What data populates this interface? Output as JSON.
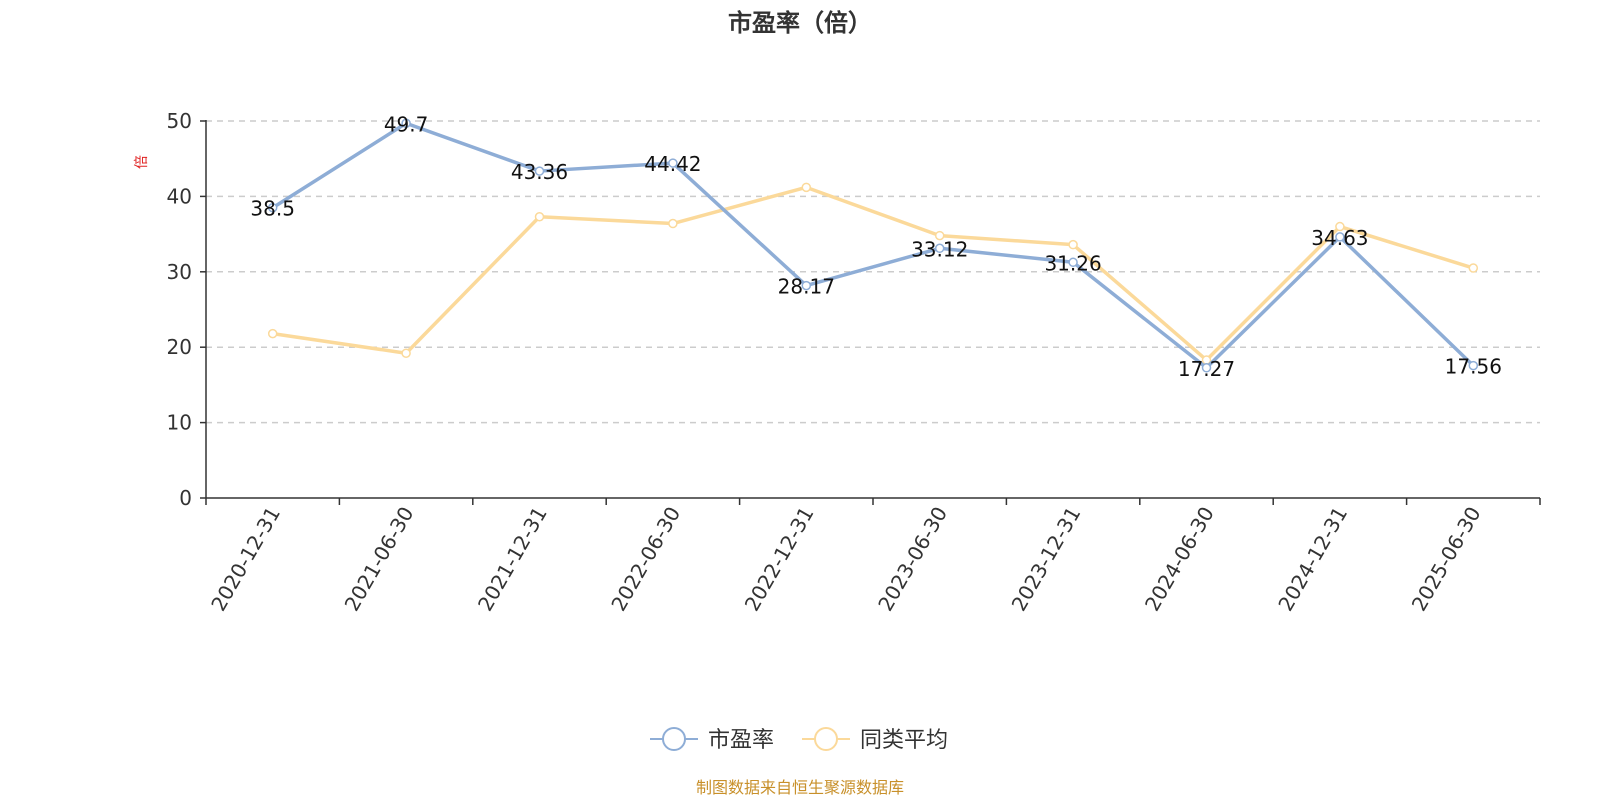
{
  "chart_data": {
    "type": "line",
    "title": "市盈率（倍）",
    "ylabel": "倍",
    "ylim": [
      0,
      50
    ],
    "yticks": [
      0,
      10,
      20,
      30,
      40,
      50
    ],
    "grid": true,
    "legend_position": "bottom",
    "categories": [
      "2020-12-31",
      "2021-06-30",
      "2021-12-31",
      "2022-06-30",
      "2022-12-31",
      "2023-06-30",
      "2023-12-31",
      "2024-06-30",
      "2024-12-31",
      "2025-06-30"
    ],
    "series": [
      {
        "name": "市盈率",
        "color": "#8eadd6",
        "values": [
          38.5,
          49.7,
          43.36,
          44.42,
          28.17,
          33.12,
          31.26,
          17.27,
          34.63,
          17.56
        ],
        "labels": [
          "38.5",
          "49.7",
          "43.36",
          "44.42",
          "28.17",
          "33.12",
          "31.26",
          "17.27",
          "34.63",
          "17.56"
        ]
      },
      {
        "name": "同类平均",
        "color": "#fbd99a",
        "values": [
          21.8,
          19.2,
          37.3,
          36.4,
          41.2,
          34.8,
          33.6,
          18.3,
          36.0,
          30.5
        ]
      }
    ],
    "source": "制图数据来自恒生聚源数据库",
    "colors": {
      "ylabel": "#e02020",
      "source": "#c8902a",
      "axis": "#333333",
      "grid": "#cccccc"
    }
  }
}
